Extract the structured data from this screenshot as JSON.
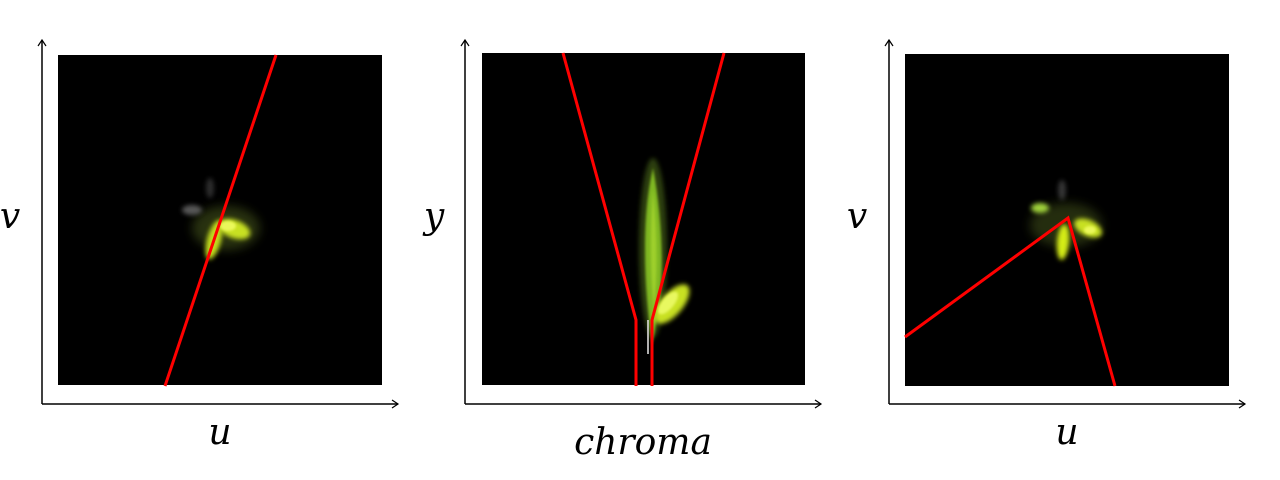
{
  "colors": {
    "background": "#ffffff",
    "plot_background": "#000000",
    "axis": "#000000",
    "boundary_line": "#ff0000",
    "scatter_glow": "#7a8f2a",
    "scatter_bright": "#d4ec18",
    "scatter_green": "#9fd13a",
    "scatter_gray": "#6d6d6d"
  },
  "panels": [
    {
      "id": "uv-left",
      "x_label": "u",
      "y_label": "v",
      "boundary": "single line through the yellow cluster"
    },
    {
      "id": "chroma-y",
      "x_label": "chroma",
      "y_label": "y",
      "boundary": "V-shaped wedge with vertical stem"
    },
    {
      "id": "uv-right",
      "x_label": "u",
      "y_label": "v",
      "boundary": "two lines meeting at the cluster apex"
    }
  ]
}
